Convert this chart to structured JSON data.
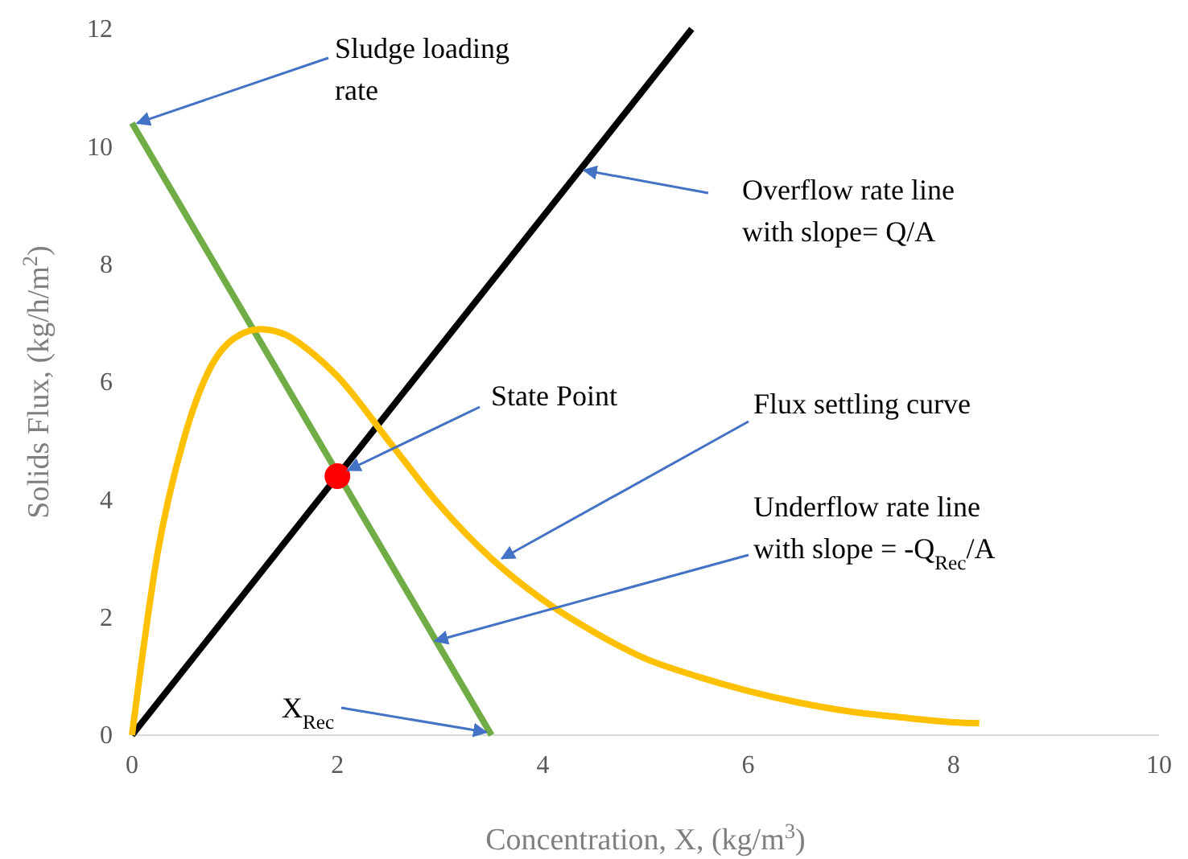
{
  "chart_data": {
    "type": "line",
    "xlabel": "Concentration, X, (kg/m$^{3}$)",
    "ylabel": "Solids Flux, (kg/h/m$^{2}$)",
    "xlim": [
      0,
      10
    ],
    "xticks": [
      0,
      2,
      4,
      6,
      8,
      10
    ],
    "ylim": [
      0,
      12
    ],
    "yticks": [
      0,
      2,
      4,
      6,
      8,
      10,
      12
    ],
    "grid": false,
    "series": [
      {
        "color": "#000000",
        "x": [
          0,
          5.45
        ],
        "values": [
          0,
          12
        ]
      },
      {
        "color": "#70ad47",
        "x": [
          0,
          3.5
        ],
        "values": [
          10.4,
          0
        ]
      },
      {
        "color": "#ffc000",
        "x": [
          0,
          0.25,
          0.5,
          0.75,
          1.0,
          1.25,
          1.5,
          1.75,
          2,
          2.5,
          3,
          3.5,
          4,
          4.5,
          5,
          5.5,
          6,
          6.5,
          7,
          7.5,
          8,
          8.25
        ],
        "values": [
          0,
          3.1,
          5.0,
          6.2,
          6.75,
          6.9,
          6.8,
          6.5,
          6.1,
          5.0,
          3.9,
          3.0,
          2.3,
          1.75,
          1.3,
          1.0,
          0.75,
          0.55,
          0.4,
          0.3,
          0.22,
          0.2
        ]
      },
      {
        "type": "scatter",
        "color": "#ff0000",
        "marker": "circle",
        "x": [
          2
        ],
        "values": [
          4.4
        ]
      }
    ],
    "annotations": [
      {
        "text": "Sludge loading rate",
        "x": 0.05,
        "y": 10.4
      },
      {
        "text": "Overflow rate line with slope= Q/A",
        "x": 4.4,
        "y": 9.6
      },
      {
        "text": "State Point",
        "x": 2.1,
        "y": 4.5
      },
      {
        "text": "Flux settling curve",
        "x": 3.6,
        "y": 3.0
      },
      {
        "text": "Underflow rate line with slope = -Q$_{Rec}$/A",
        "x": 2.95,
        "y": 1.6
      },
      {
        "text": "X$_{Rec}$",
        "x": 3.45,
        "y": 0.05
      }
    ]
  }
}
